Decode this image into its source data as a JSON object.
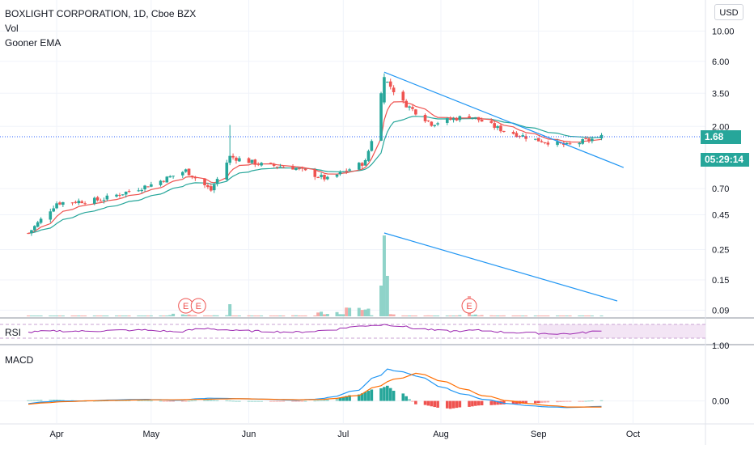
{
  "header": {
    "symbol_line": "BOXLIGHT CORPORATION, 1D, Cboe BZX",
    "vol_label": "Vol",
    "ema_label": "Gooner EMA"
  },
  "currency_button": "USD",
  "price_tags": {
    "last_price": "1.68",
    "countdown": "05:29:14"
  },
  "panes": {
    "rsi_label": "RSI",
    "macd_label": "MACD"
  },
  "colors": {
    "up": "#26a69a",
    "down": "#ef5350",
    "up_volume": "#8fd3c9",
    "down_volume": "#f7a9a7",
    "trendline": "#2196f3",
    "ema_fast": "#ef5350",
    "ema_slow": "#26a69a",
    "rsi": "#9c27b0",
    "macd_line": "#2196f3",
    "signal_line": "#ff6d00",
    "last_price_tag": "#26a69a",
    "grid": "#f0f3fa"
  },
  "chart_data": [
    {
      "type": "candlestick",
      "title": "BOXLIGHT CORPORATION, 1D, Cboe BZX",
      "scale": "log",
      "y_ticks": [
        "10.00",
        "6.00",
        "3.50",
        "2.00",
        "0.70",
        "0.45",
        "0.25",
        "0.15",
        "0.09"
      ],
      "x_ticks": [
        "Apr",
        "May",
        "Jun",
        "Jul",
        "Aug",
        "Sep",
        "Oct"
      ],
      "ylim": [
        0.08,
        16.0
      ],
      "last_price": 1.68,
      "price_series": [
        {
          "date": "2020-03-23",
          "close": 0.33
        },
        {
          "date": "2020-04-01",
          "close": 0.55
        },
        {
          "date": "2020-04-15",
          "close": 0.58
        },
        {
          "date": "2020-05-01",
          "close": 0.75
        },
        {
          "date": "2020-05-12",
          "close": 0.95
        },
        {
          "date": "2020-05-20",
          "close": 0.68
        },
        {
          "date": "2020-05-26",
          "close": 1.2
        },
        {
          "date": "2020-06-05",
          "close": 1.05
        },
        {
          "date": "2020-06-15",
          "close": 1.0
        },
        {
          "date": "2020-06-26",
          "close": 0.82
        },
        {
          "date": "2020-07-08",
          "close": 1.1
        },
        {
          "date": "2020-07-10",
          "close": 1.6
        },
        {
          "date": "2020-07-14",
          "close": 4.5
        },
        {
          "date": "2020-07-20",
          "close": 3.0
        },
        {
          "date": "2020-07-29",
          "close": 2.1
        },
        {
          "date": "2020-08-10",
          "close": 2.4
        },
        {
          "date": "2020-08-20",
          "close": 1.9
        },
        {
          "date": "2020-08-31",
          "close": 1.6
        },
        {
          "date": "2020-09-10",
          "close": 1.45
        },
        {
          "date": "2020-09-21",
          "close": 1.68
        }
      ],
      "trendlines": [
        {
          "start": {
            "date": "2020-07-14",
            "value": 5.0
          },
          "end": {
            "date": "2020-09-28",
            "value": 1.0
          }
        }
      ],
      "annotations": [
        "E",
        "E",
        "E"
      ]
    },
    {
      "type": "bar",
      "title": "Vol",
      "values_relative": [
        0.05,
        0.08,
        0.06,
        0.1,
        0.09,
        0.28,
        0.12,
        0.1,
        0.08,
        0.1,
        0.5,
        1.0,
        0.25,
        0.1,
        0.08,
        0.25,
        0.1,
        0.06,
        0.05,
        0.1
      ]
    },
    {
      "type": "line",
      "title": "RSI",
      "y_ticks": [],
      "series": [
        {
          "values": [
            45,
            52,
            50,
            54,
            55,
            48,
            62,
            52,
            50,
            46,
            55,
            70,
            78,
            60,
            50,
            54,
            46,
            42,
            40,
            50
          ]
        }
      ]
    },
    {
      "type": "line",
      "title": "MACD",
      "y_ticks": [
        "1.00",
        "0.00"
      ],
      "ylim": [
        -0.4,
        1.0
      ],
      "series": [
        {
          "values": [
            -0.05,
            0.0,
            0.0,
            0.02,
            0.03,
            0.01,
            0.05,
            0.04,
            0.03,
            0.01,
            0.05,
            0.2,
            0.58,
            0.45,
            0.2,
            0.05,
            -0.05,
            -0.1,
            -0.12,
            -0.1
          ]
        },
        {
          "values": [
            -0.06,
            -0.02,
            0.0,
            0.01,
            0.02,
            0.02,
            0.03,
            0.04,
            0.03,
            0.02,
            0.03,
            0.1,
            0.35,
            0.5,
            0.32,
            0.12,
            0.0,
            -0.07,
            -0.11,
            -0.11
          ]
        }
      ]
    }
  ]
}
